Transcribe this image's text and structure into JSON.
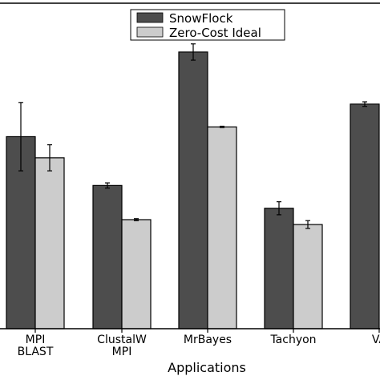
{
  "chart_data": {
    "type": "bar",
    "title": "",
    "xlabel": "Applications",
    "ylabel": "",
    "ylim": [
      0,
      100
    ],
    "categories": [
      [
        "MPI",
        "BLAST"
      ],
      [
        "ClustalW",
        "MPI"
      ],
      [
        "MrBayes"
      ],
      [
        "Tachyon"
      ],
      [
        "VA"
      ]
    ],
    "series": [
      {
        "name": "SnowFlock",
        "color": "#4d4d4d",
        "values": [
          59,
          44,
          85,
          37,
          69
        ],
        "errors": [
          10.5,
          0.8,
          2.5,
          2.0,
          0.7
        ]
      },
      {
        "name": "Zero-Cost Ideal",
        "color": "#cccccc",
        "values": [
          52.5,
          33.5,
          62,
          32,
          null
        ],
        "errors": [
          4.0,
          0.3,
          0.2,
          1.2,
          null
        ]
      }
    ],
    "legend": {
      "placement": "top-center"
    },
    "grid": false
  }
}
